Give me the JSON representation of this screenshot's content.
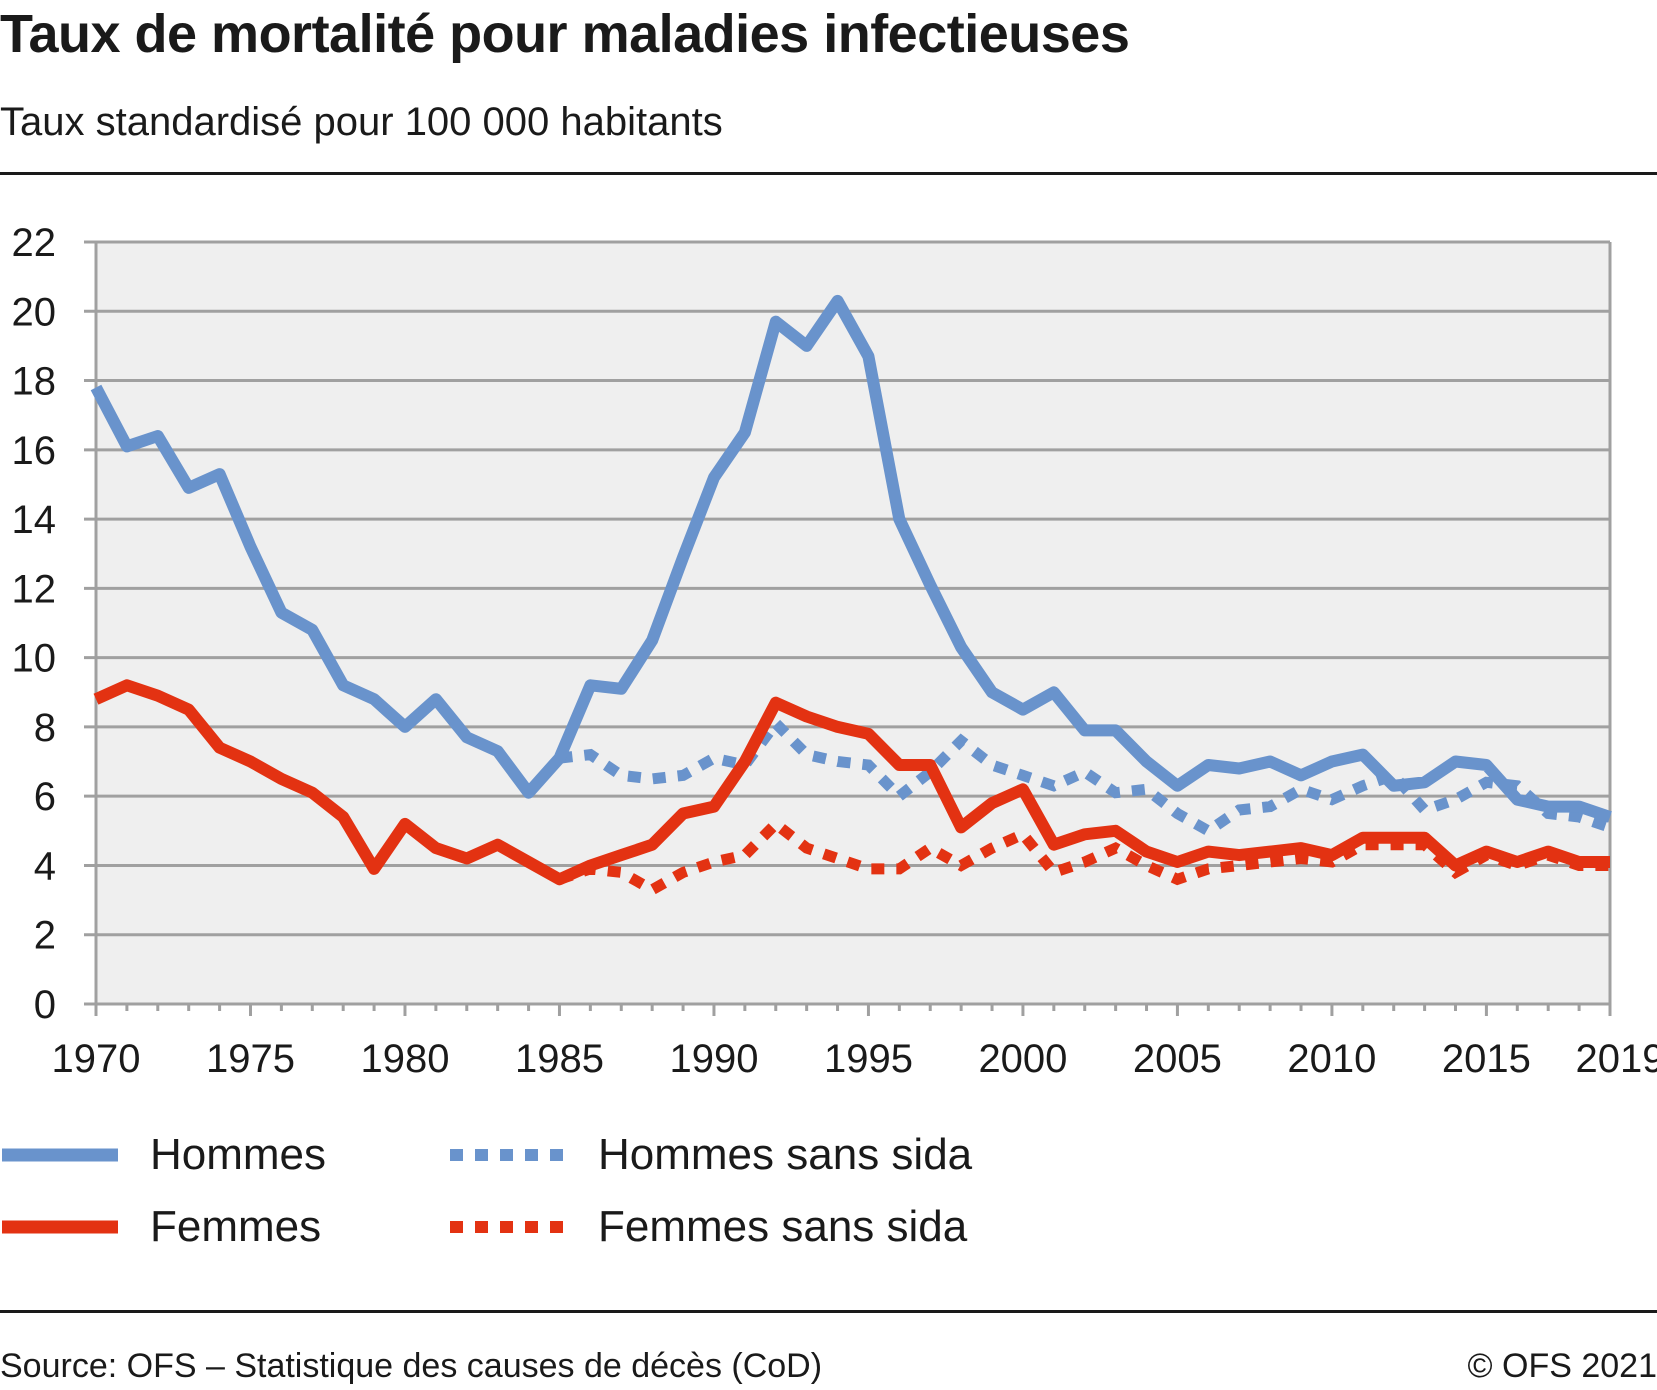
{
  "header": {
    "title": "Taux de mortalité pour maladies infectieuses",
    "subtitle": "Taux standardisé pour 100 000 habitants"
  },
  "footer": {
    "source": "Source: OFS – Statistique des causes de décès (CoD)",
    "copyright": "© OFS 2021"
  },
  "colors": {
    "hommes": "#6993cc",
    "femmes": "#e33212",
    "plot_background": "#efefef",
    "gridline": "#a0a0a0",
    "text": "#1a1a1a"
  },
  "legend": [
    {
      "label": "Hommes",
      "series": "hommes",
      "style": "solid"
    },
    {
      "label": "Hommes sans sida",
      "series": "hommes_sans_sida",
      "style": "dotted"
    },
    {
      "label": "Femmes",
      "series": "femmes",
      "style": "solid"
    },
    {
      "label": "Femmes sans sida",
      "series": "femmes_sans_sida",
      "style": "dotted"
    }
  ],
  "chart_data": {
    "type": "line",
    "title": "Taux de mortalité pour maladies infectieuses",
    "subtitle": "Taux standardisé pour 100 000 habitants",
    "xlabel": "",
    "ylabel": "",
    "xlim": [
      1970,
      2019
    ],
    "ylim": [
      0,
      22
    ],
    "grid": true,
    "legend_position": "bottom",
    "x_ticks": [
      "1970",
      "1975",
      "1980",
      "1985",
      "1990",
      "1995",
      "2000",
      "2005",
      "2010",
      "2015",
      "2019"
    ],
    "x_tick_values": [
      1970,
      1975,
      1980,
      1985,
      1990,
      1995,
      2000,
      2005,
      2010,
      2015,
      2019
    ],
    "y_ticks": [
      "0",
      "2",
      "4",
      "6",
      "8",
      "10",
      "12",
      "14",
      "16",
      "18",
      "20",
      "22"
    ],
    "y_tick_values": [
      0,
      2,
      4,
      6,
      8,
      10,
      12,
      14,
      16,
      18,
      20,
      22
    ],
    "series": [
      {
        "name": "Hommes",
        "key": "hommes",
        "color": "#6993cc",
        "style": "solid",
        "x_start": 1970,
        "values": [
          17.8,
          16.1,
          16.4,
          14.9,
          15.3,
          13.2,
          11.3,
          10.8,
          9.2,
          8.8,
          8.0,
          8.8,
          7.7,
          7.3,
          6.1,
          7.1,
          9.2,
          9.1,
          10.5,
          12.9,
          15.2,
          16.5,
          19.7,
          19.0,
          20.3,
          18.7,
          14.0,
          12.1,
          10.3,
          9.0,
          8.5,
          9.0,
          7.9,
          7.9,
          7.0,
          6.3,
          6.9,
          6.8,
          7.0,
          6.6,
          7.0,
          7.2,
          6.3,
          6.4,
          7.0,
          6.9,
          5.9,
          5.7,
          5.7,
          5.4
        ]
      },
      {
        "name": "Femmes",
        "key": "femmes",
        "color": "#e33212",
        "style": "solid",
        "x_start": 1970,
        "values": [
          8.8,
          9.2,
          8.9,
          8.5,
          7.4,
          7.0,
          6.5,
          6.1,
          5.4,
          3.9,
          5.2,
          4.5,
          4.2,
          4.6,
          4.1,
          3.6,
          4.0,
          4.3,
          4.6,
          5.5,
          5.7,
          7.0,
          8.7,
          8.3,
          8.0,
          7.8,
          6.9,
          6.9,
          5.1,
          5.8,
          6.2,
          4.6,
          4.9,
          5.0,
          4.4,
          4.1,
          4.4,
          4.3,
          4.4,
          4.5,
          4.3,
          4.8,
          4.8,
          4.8,
          4.0,
          4.4,
          4.1,
          4.4,
          4.1,
          4.1
        ]
      },
      {
        "name": "Hommes sans sida",
        "key": "hommes_sans_sida",
        "color": "#6993cc",
        "style": "dotted",
        "x_start": 1985,
        "values": [
          7.1,
          7.2,
          6.6,
          6.5,
          6.6,
          7.1,
          6.9,
          8.1,
          7.2,
          7.0,
          6.9,
          6.0,
          6.7,
          7.6,
          6.9,
          6.6,
          6.3,
          6.7,
          6.1,
          6.2,
          5.5,
          5.0,
          5.6,
          5.7,
          6.2,
          5.9,
          6.3,
          6.6,
          5.6,
          5.9,
          6.4,
          6.3,
          5.5,
          5.4,
          5.1
        ]
      },
      {
        "name": "Femmes sans sida",
        "key": "femmes_sans_sida",
        "color": "#e33212",
        "style": "dotted",
        "x_start": 1985,
        "values": [
          3.6,
          3.9,
          3.8,
          3.3,
          3.8,
          4.1,
          4.3,
          5.2,
          4.5,
          4.2,
          3.9,
          3.9,
          4.5,
          4.0,
          4.5,
          4.9,
          3.8,
          4.1,
          4.5,
          4.0,
          3.6,
          3.9,
          4.0,
          4.1,
          4.2,
          4.1,
          4.6,
          4.6,
          4.6,
          3.8,
          4.3,
          4.0,
          4.3,
          4.0,
          4.0
        ]
      }
    ]
  }
}
